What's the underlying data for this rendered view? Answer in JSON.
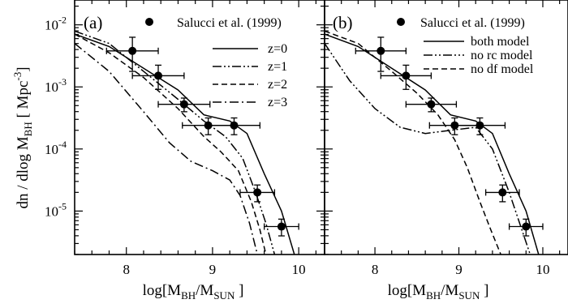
{
  "chart_data": [
    {
      "type": "line",
      "panel_label": "(a)",
      "xlabel": "log[M_BH/M_SUN ]",
      "ylabel": "dn / dlog M_BH  [ Mpc^-3]",
      "xlim": [
        7.4,
        10.3
      ],
      "ylim_log10": [
        -5.7,
        -1.6
      ],
      "y_scale": "log",
      "x_ticks": [
        8,
        9,
        10
      ],
      "y_ticks": [
        {
          "exp": -2,
          "label": "10",
          "sup": "-2"
        },
        {
          "exp": -3,
          "label": "10",
          "sup": "-3"
        },
        {
          "exp": -4,
          "label": "10",
          "sup": "-4"
        },
        {
          "exp": -5,
          "label": "10",
          "sup": "-5"
        }
      ],
      "observations": {
        "name": "Salucci et al. (1999)",
        "points": [
          {
            "x": 8.07,
            "log10y": -2.42,
            "xerr": 0.3,
            "yerr_lo": 0.33,
            "yerr_hi": 0.22
          },
          {
            "x": 8.37,
            "log10y": -2.82,
            "xerr": 0.3,
            "yerr_lo": 0.22,
            "yerr_hi": 0.17
          },
          {
            "x": 8.67,
            "log10y": -3.28,
            "xerr": 0.3,
            "yerr_lo": 0.12,
            "yerr_hi": 0.1
          },
          {
            "x": 8.95,
            "log10y": -3.62,
            "xerr": 0.3,
            "yerr_lo": 0.15,
            "yerr_hi": 0.12
          },
          {
            "x": 9.25,
            "log10y": -3.62,
            "xerr": 0.3,
            "yerr_lo": 0.15,
            "yerr_hi": 0.12
          },
          {
            "x": 9.52,
            "log10y": -4.7,
            "xerr": 0.2,
            "yerr_lo": 0.15,
            "yerr_hi": 0.12
          },
          {
            "x": 9.8,
            "log10y": -5.25,
            "xerr": 0.2,
            "yerr_lo": 0.15,
            "yerr_hi": 0.12
          }
        ]
      },
      "series": [
        {
          "name": "z=0",
          "style": "solid",
          "points": [
            [
              7.4,
              -2.15
            ],
            [
              7.8,
              -2.35
            ],
            [
              8.2,
              -2.7
            ],
            [
              8.6,
              -3.05
            ],
            [
              8.9,
              -3.45
            ],
            [
              9.2,
              -3.55
            ],
            [
              9.4,
              -3.75
            ],
            [
              9.6,
              -4.4
            ],
            [
              9.8,
              -5.0
            ],
            [
              9.95,
              -5.7
            ]
          ]
        },
        {
          "name": "z=1",
          "style": "dash-dot-dot",
          "points": [
            [
              7.4,
              -2.1
            ],
            [
              7.8,
              -2.3
            ],
            [
              8.2,
              -2.75
            ],
            [
              8.6,
              -3.2
            ],
            [
              8.9,
              -3.55
            ],
            [
              9.15,
              -3.8
            ],
            [
              9.35,
              -4.15
            ],
            [
              9.5,
              -4.7
            ],
            [
              9.62,
              -5.2
            ],
            [
              9.72,
              -5.7
            ]
          ]
        },
        {
          "name": "z=2",
          "style": "dashed",
          "points": [
            [
              7.4,
              -2.15
            ],
            [
              7.8,
              -2.45
            ],
            [
              8.2,
              -2.85
            ],
            [
              8.6,
              -3.35
            ],
            [
              8.9,
              -3.8
            ],
            [
              9.1,
              -4.05
            ],
            [
              9.3,
              -4.35
            ],
            [
              9.45,
              -4.85
            ],
            [
              9.55,
              -5.3
            ],
            [
              9.62,
              -5.7
            ]
          ]
        },
        {
          "name": "z=3",
          "style": "dash-dot",
          "points": [
            [
              7.4,
              -2.3
            ],
            [
              7.8,
              -2.75
            ],
            [
              8.2,
              -3.4
            ],
            [
              8.5,
              -3.9
            ],
            [
              8.75,
              -4.2
            ],
            [
              9.0,
              -4.35
            ],
            [
              9.2,
              -4.5
            ],
            [
              9.32,
              -4.75
            ],
            [
              9.43,
              -5.2
            ],
            [
              9.52,
              -5.7
            ]
          ]
        }
      ]
    },
    {
      "type": "line",
      "panel_label": "(b)",
      "xlabel": "log[M_BH/M_SUN ]",
      "ylabel": "",
      "xlim": [
        7.4,
        10.3
      ],
      "ylim_log10": [
        -5.7,
        -1.6
      ],
      "y_scale": "log",
      "x_ticks": [
        8,
        9,
        10
      ],
      "observations": {
        "name": "Salucci et al. (1999)",
        "points": [
          {
            "x": 8.07,
            "log10y": -2.42,
            "xerr": 0.3,
            "yerr_lo": 0.33,
            "yerr_hi": 0.22
          },
          {
            "x": 8.37,
            "log10y": -2.82,
            "xerr": 0.3,
            "yerr_lo": 0.22,
            "yerr_hi": 0.17
          },
          {
            "x": 8.67,
            "log10y": -3.28,
            "xerr": 0.3,
            "yerr_lo": 0.12,
            "yerr_hi": 0.1
          },
          {
            "x": 8.95,
            "log10y": -3.62,
            "xerr": 0.3,
            "yerr_lo": 0.15,
            "yerr_hi": 0.12
          },
          {
            "x": 9.25,
            "log10y": -3.62,
            "xerr": 0.3,
            "yerr_lo": 0.15,
            "yerr_hi": 0.12
          },
          {
            "x": 9.52,
            "log10y": -4.7,
            "xerr": 0.2,
            "yerr_lo": 0.15,
            "yerr_hi": 0.12
          },
          {
            "x": 9.8,
            "log10y": -5.25,
            "xerr": 0.2,
            "yerr_lo": 0.15,
            "yerr_hi": 0.12
          }
        ]
      },
      "series": [
        {
          "name": "both model",
          "style": "solid",
          "points": [
            [
              7.4,
              -2.15
            ],
            [
              7.8,
              -2.35
            ],
            [
              8.2,
              -2.7
            ],
            [
              8.6,
              -3.05
            ],
            [
              8.9,
              -3.45
            ],
            [
              9.2,
              -3.55
            ],
            [
              9.4,
              -3.75
            ],
            [
              9.6,
              -4.4
            ],
            [
              9.8,
              -5.0
            ],
            [
              9.95,
              -5.7
            ]
          ]
        },
        {
          "name": "no rc model",
          "style": "dash-dot-dot",
          "points": [
            [
              7.4,
              -2.3
            ],
            [
              7.7,
              -2.9
            ],
            [
              8.0,
              -3.35
            ],
            [
              8.3,
              -3.65
            ],
            [
              8.6,
              -3.75
            ],
            [
              8.9,
              -3.7
            ],
            [
              9.2,
              -3.65
            ],
            [
              9.4,
              -4.0
            ],
            [
              9.6,
              -4.7
            ],
            [
              9.75,
              -5.3
            ],
            [
              9.85,
              -5.7
            ]
          ]
        },
        {
          "name": "no df model",
          "style": "dashed",
          "points": [
            [
              7.4,
              -2.1
            ],
            [
              7.8,
              -2.3
            ],
            [
              8.2,
              -2.75
            ],
            [
              8.5,
              -3.1
            ],
            [
              8.75,
              -3.45
            ],
            [
              8.95,
              -3.85
            ],
            [
              9.1,
              -4.3
            ],
            [
              9.25,
              -4.85
            ],
            [
              9.38,
              -5.3
            ],
            [
              9.5,
              -5.7
            ]
          ]
        }
      ]
    }
  ]
}
